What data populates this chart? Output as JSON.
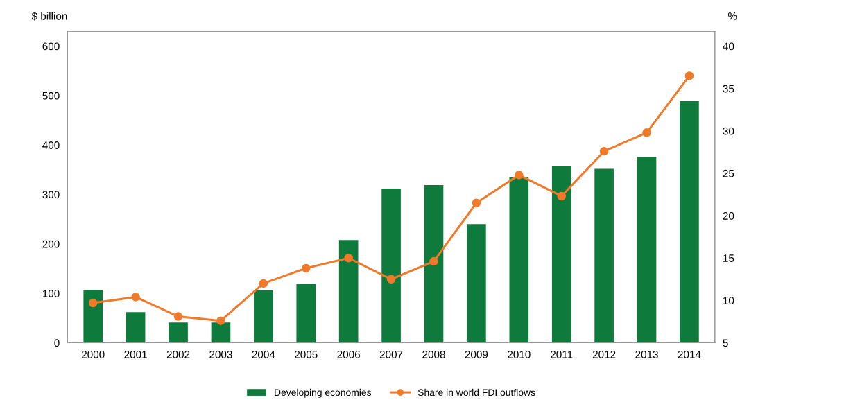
{
  "chart_data": {
    "type": "bar",
    "ylabel": "$ billion",
    "y2label": "%",
    "categories": [
      "2000",
      "2001",
      "2002",
      "2003",
      "2004",
      "2005",
      "2006",
      "2007",
      "2008",
      "2009",
      "2010",
      "2011",
      "2012",
      "2013",
      "2014"
    ],
    "series": [
      {
        "name": "Developing economies",
        "color": "#0e7a3c",
        "values": [
          107,
          62,
          41,
          41,
          106,
          119,
          208,
          312,
          319,
          240,
          335,
          357,
          352,
          376,
          489
        ]
      },
      {
        "name": "Share in world FDI outflows",
        "type": "line",
        "axis": "y2",
        "color": "#f07a2a",
        "marker": "circle",
        "values": [
          9.7,
          10.4,
          8.1,
          7.6,
          12.0,
          13.8,
          15.0,
          12.5,
          14.6,
          21.5,
          24.8,
          22.3,
          27.6,
          29.8,
          36.5
        ]
      }
    ],
    "ylim": [
      0,
      630
    ],
    "yticks": [
      0,
      100,
      200,
      300,
      400,
      500,
      600
    ],
    "y2lim": [
      5,
      41.75
    ],
    "y2ticks": [
      5,
      10,
      15,
      20,
      25,
      30,
      35,
      40
    ],
    "grid": false,
    "legend": "bottom"
  }
}
